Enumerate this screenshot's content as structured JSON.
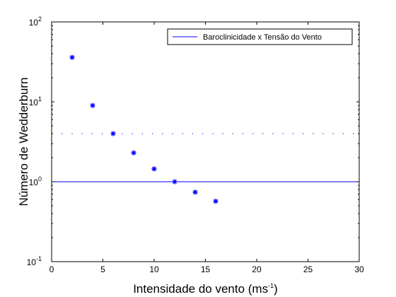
{
  "chart_data": {
    "type": "scatter",
    "xlabel_main": "Intensidade do vento (ms",
    "xlabel_sup": "-1",
    "xlabel_close": ")",
    "ylabel": "Número de Wedderburn",
    "xlim": [
      0,
      30
    ],
    "ylim": [
      0.1,
      100
    ],
    "yscale": "log",
    "grid": false,
    "legend_position": "top-right",
    "x_ticks": [
      0,
      5,
      10,
      15,
      20,
      25,
      30
    ],
    "y_ticks": [
      {
        "base": "10",
        "exp": "-1",
        "value": 0.1
      },
      {
        "base": "10",
        "exp": "0",
        "value": 1
      },
      {
        "base": "10",
        "exp": "1",
        "value": 10
      },
      {
        "base": "10",
        "exp": "2",
        "value": 100
      }
    ],
    "series": [
      {
        "name": "Baroclinicidade x Tensão do Vento",
        "color": "#0000ff",
        "marker": "asterisk",
        "x": [
          2,
          4,
          6,
          8,
          10,
          12,
          14,
          16
        ],
        "y": [
          36,
          9,
          4,
          2.3,
          1.45,
          1.0,
          0.74,
          0.57
        ]
      }
    ],
    "reference_lines": [
      {
        "y": 1,
        "style": "solid",
        "color": "#0000ff"
      },
      {
        "y": 4,
        "style": "dotted",
        "color": "#0000ff"
      }
    ]
  }
}
